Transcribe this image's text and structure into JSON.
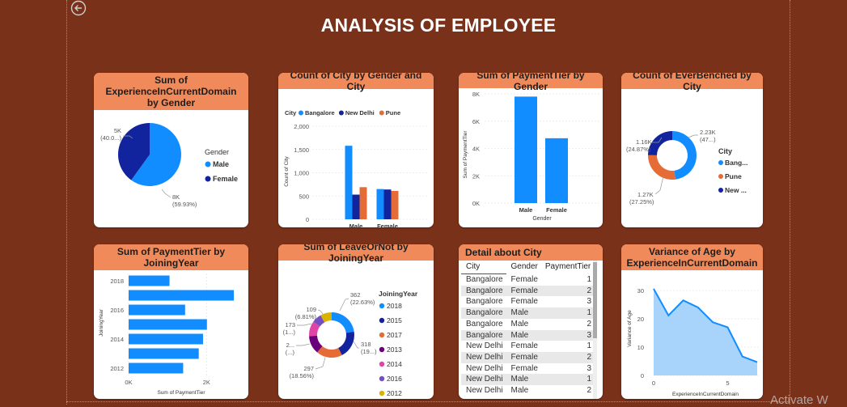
{
  "page": {
    "title": "ANALYSIS OF EMPLOYEE",
    "watermark": "Activate W"
  },
  "colors": {
    "blue": "#118dff",
    "navy": "#12239e",
    "orange": "#e66c37",
    "purple": "#6b007b",
    "pink": "#e044a7",
    "violet": "#744ec2",
    "yellow": "#d9b300",
    "header": "#f08a5a",
    "bg": "#7a3119"
  },
  "cards": {
    "c1": {
      "title": "Sum of ExperienceInCurrentDomain by Gender"
    },
    "c2": {
      "title": "Count of City by Gender and City"
    },
    "c3": {
      "title": "Sum of PaymentTier by Gender"
    },
    "c4": {
      "title": "Count of EverBenched by City"
    },
    "c5": {
      "title": "Sum of PaymentTier by JoiningYear"
    },
    "c6": {
      "title": "Sum of LeaveOrNot by JoiningYear"
    },
    "c7": {
      "title": "Detail about City"
    },
    "c8": {
      "title": "Variance of Age by ExperienceInCurrentDomain"
    }
  },
  "chart_data": [
    {
      "type": "pie",
      "title": "Sum of ExperienceInCurrentDomain by Gender",
      "legend_title": "Gender",
      "legend_position": "right",
      "slices": [
        {
          "name": "Male",
          "value": 8000,
          "label": "8K",
          "pct_label": "(59.93%)",
          "color": "#118dff"
        },
        {
          "name": "Female",
          "value": 5350,
          "label": "5K",
          "pct_label": "(40.0...)",
          "color": "#12239e"
        }
      ]
    },
    {
      "type": "bar",
      "title": "Count of City by Gender and City",
      "legend_title": "City",
      "legend_position": "top",
      "categories": [
        "Male",
        "Female"
      ],
      "xlabel": "Gender",
      "ylabel": "Count of City",
      "ylim": [
        0,
        2000
      ],
      "yticks": [
        "0",
        "500",
        "1,000",
        "1,500",
        "2,000"
      ],
      "grid": true,
      "series": [
        {
          "name": "Bangalore",
          "values": [
            1580,
            650
          ],
          "color": "#118dff"
        },
        {
          "name": "New Delhi",
          "values": [
            530,
            640
          ],
          "color": "#12239e"
        },
        {
          "name": "Pune",
          "values": [
            690,
            610
          ],
          "color": "#e66c37"
        }
      ]
    },
    {
      "type": "bar",
      "title": "Sum of PaymentTier by Gender",
      "categories": [
        "Male",
        "Female"
      ],
      "xlabel": "Gender",
      "ylabel": "Sum of PaymentTier",
      "ylim": [
        0,
        8000
      ],
      "yticks": [
        "0K",
        "2K",
        "4K",
        "6K",
        "8K"
      ],
      "grid": true,
      "values": [
        7800,
        4750
      ]
    },
    {
      "type": "pie",
      "title": "Count of EverBenched by City",
      "donut": true,
      "legend_title": "City",
      "legend_position": "right",
      "slices": [
        {
          "name": "Bang...",
          "value": 2230,
          "label": "2.23K",
          "pct_label": "(47...)",
          "color": "#118dff"
        },
        {
          "name": "Pune",
          "value": 1270,
          "label": "1.27K",
          "pct_label": "(27.25%)",
          "color": "#e66c37"
        },
        {
          "name": "New ...",
          "value": 1160,
          "label": "1.16K",
          "pct_label": "(24.87%)",
          "color": "#12239e"
        }
      ]
    },
    {
      "type": "bar",
      "orientation": "horizontal",
      "title": "Sum of PaymentTier by JoiningYear",
      "categories": [
        "2018",
        "2017",
        "2016",
        "2015",
        "2014",
        "2013",
        "2012"
      ],
      "ytick_labels": [
        "2018",
        "2016",
        "2014",
        "2012"
      ],
      "xlabel": "Sum of PaymentTier",
      "ylabel": "JoiningYear",
      "xlim": [
        0,
        2700
      ],
      "xticks": [
        "0K",
        "2K"
      ],
      "grid": true,
      "values": [
        1050,
        2700,
        1450,
        2010,
        1910,
        1800,
        1400
      ]
    },
    {
      "type": "pie",
      "title": "Sum of LeaveOrNot by JoiningYear",
      "donut": true,
      "legend_title": "JoiningYear",
      "legend_position": "right",
      "slices": [
        {
          "name": "2018",
          "value": 362,
          "label": "362",
          "pct_label": "(22.63%)",
          "color": "#118dff"
        },
        {
          "name": "2015",
          "value": 318,
          "label": "318",
          "pct_label": "(19...)",
          "color": "#12239e"
        },
        {
          "name": "2017",
          "value": 297,
          "label": "297",
          "pct_label": "(18.56%)",
          "color": "#e66c37"
        },
        {
          "name": "2013",
          "value": 210,
          "label": "2...",
          "pct_label": "(...)",
          "color": "#6b007b"
        },
        {
          "name": "2014",
          "value": 173,
          "label": "173",
          "pct_label": "(1...)",
          "color": "#e044a7"
        },
        {
          "name": "2016",
          "value": 109,
          "label": "109",
          "pct_label": "(6.81%)",
          "color": "#744ec2"
        },
        {
          "name": "2012",
          "value": 131,
          "label": "",
          "pct_label": "",
          "color": "#d9b300"
        }
      ]
    },
    {
      "type": "table",
      "title": "Detail about City",
      "columns": [
        "City",
        "Gender",
        "PaymentTier"
      ],
      "rows": [
        [
          "Bangalore",
          "Female",
          "1"
        ],
        [
          "Bangalore",
          "Female",
          "2"
        ],
        [
          "Bangalore",
          "Female",
          "3"
        ],
        [
          "Bangalore",
          "Male",
          "1"
        ],
        [
          "Bangalore",
          "Male",
          "2"
        ],
        [
          "Bangalore",
          "Male",
          "3"
        ],
        [
          "New Delhi",
          "Female",
          "1"
        ],
        [
          "New Delhi",
          "Female",
          "2"
        ],
        [
          "New Delhi",
          "Female",
          "3"
        ],
        [
          "New Delhi",
          "Male",
          "1"
        ],
        [
          "New Delhi",
          "Male",
          "2"
        ]
      ]
    },
    {
      "type": "area",
      "title": "Variance of Age by ExperienceInCurrentDomain",
      "xlabel": "ExperienceInCurrentDomain",
      "ylabel": "Variance of Age",
      "xlim": [
        0,
        7
      ],
      "ylim": [
        0,
        32
      ],
      "xticks": [
        "0",
        "5"
      ],
      "yticks": [
        "0",
        "10",
        "20",
        "30"
      ],
      "grid": true,
      "x": [
        0,
        1,
        2,
        3,
        4,
        5,
        6,
        7
      ],
      "y": [
        30.6,
        21.2,
        26.5,
        24.0,
        18.8,
        17.0,
        6.7,
        4.7
      ]
    }
  ]
}
